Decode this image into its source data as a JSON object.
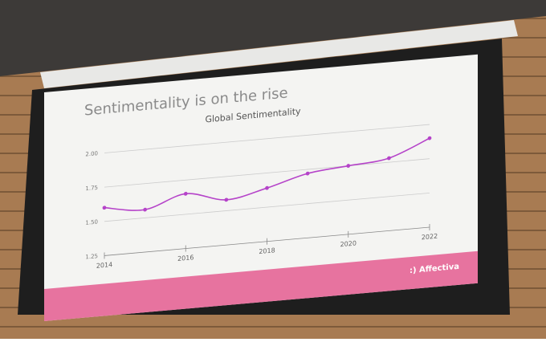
{
  "slide_title": "Sentimentality is on the rise",
  "logo": ":) Affectiva",
  "chart_data": {
    "type": "line",
    "title": "Global Sentimentality",
    "x": [
      2014,
      2015,
      2016,
      2017,
      2018,
      2019,
      2020,
      2021,
      2022
    ],
    "series": [
      {
        "name": "Global Sentimentality",
        "color": "#b543c9",
        "values": [
          1.6,
          1.56,
          1.65,
          1.58,
          1.64,
          1.72,
          1.75,
          1.78,
          1.9
        ]
      }
    ],
    "xlim": [
      2014,
      2022
    ],
    "xticks": [
      2014,
      2016,
      2018,
      2020,
      2022
    ],
    "ylim": [
      1.25,
      2.1
    ],
    "yticks": [
      1.25,
      {
        "value": 1.5,
        "label": "1.50"
      },
      1.75,
      {
        "value": 2,
        "label": "2.00"
      }
    ],
    "grid": true
  }
}
